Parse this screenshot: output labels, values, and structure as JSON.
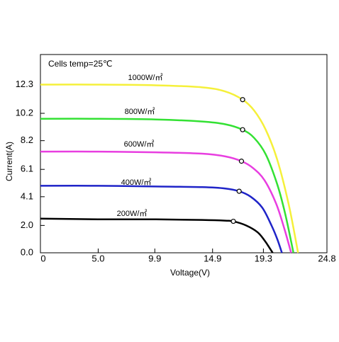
{
  "chart_data": {
    "type": "line",
    "annotation": "Cells temp=25℃",
    "x_label": "Voltage(V)",
    "y_label": "Current(A)",
    "xlim": [
      0,
      24.8
    ],
    "ylim": [
      0,
      14.5
    ],
    "xticks": [
      {
        "value": 0,
        "label": "0"
      },
      {
        "value": 5,
        "label": "5.0"
      },
      9.9,
      14.9,
      19.3,
      24.8
    ],
    "yticks": [
      {
        "value": 0,
        "label": "0.0"
      },
      {
        "value": 2,
        "label": "2.0"
      },
      4.1,
      6.1,
      8.2,
      10.2,
      12.3
    ],
    "series": [
      {
        "name": "1000W/㎡",
        "color": "#f5f03a",
        "x": [
          0,
          5,
          10,
          14,
          16,
          17.5,
          18.5,
          19.5,
          20.5,
          21.5,
          22.3
        ],
        "values": [
          12.3,
          12.3,
          12.25,
          12.1,
          11.8,
          11.2,
          10.4,
          9.0,
          6.8,
          3.5,
          0
        ],
        "mpp_x": 17.5,
        "mpp_y": 11.2
      },
      {
        "name": "800W/㎡",
        "color": "#33e133",
        "x": [
          0,
          5,
          10,
          14,
          16,
          17.5,
          18.5,
          19.5,
          20.5,
          21.2,
          21.9
        ],
        "values": [
          9.8,
          9.8,
          9.75,
          9.6,
          9.4,
          9.0,
          8.4,
          7.2,
          5.0,
          2.8,
          0
        ],
        "mpp_x": 17.5,
        "mpp_y": 9.0
      },
      {
        "name": "600W/㎡",
        "color": "#e83ee0",
        "x": [
          0,
          5,
          10,
          14,
          16,
          17.4,
          18.4,
          19.4,
          20.4,
          21.1,
          21.7
        ],
        "values": [
          7.4,
          7.4,
          7.35,
          7.25,
          7.05,
          6.7,
          6.2,
          5.3,
          3.6,
          1.8,
          0
        ],
        "mpp_x": 17.4,
        "mpp_y": 6.7
      },
      {
        "name": "400W/㎡",
        "color": "#1f24c8",
        "x": [
          0,
          5,
          10,
          14,
          16,
          17.2,
          18.2,
          19.2,
          20,
          20.5,
          20.9
        ],
        "values": [
          4.9,
          4.9,
          4.85,
          4.8,
          4.7,
          4.5,
          4.1,
          3.3,
          2.0,
          1.0,
          0
        ],
        "mpp_x": 17.2,
        "mpp_y": 4.5
      },
      {
        "name": "200W/㎡",
        "color": "#000000",
        "x": [
          0,
          5,
          10,
          14,
          16,
          16.7,
          17.8,
          18.8,
          19.4,
          19.8,
          20.1
        ],
        "values": [
          2.5,
          2.45,
          2.45,
          2.4,
          2.35,
          2.3,
          2.0,
          1.5,
          0.9,
          0.4,
          0
        ],
        "mpp_x": 16.7,
        "mpp_y": 2.3
      }
    ]
  }
}
